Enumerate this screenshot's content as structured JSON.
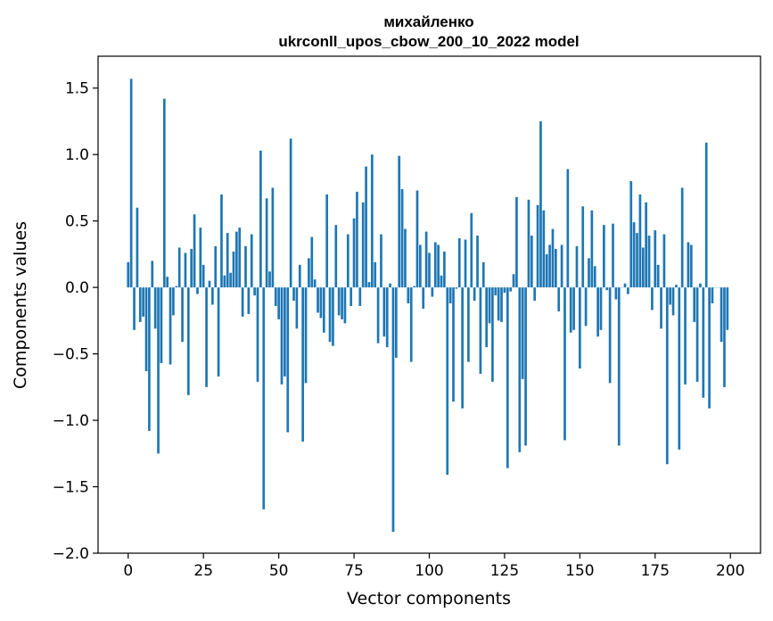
{
  "chart_data": {
    "type": "bar",
    "title": "михайленко",
    "subtitle": "ukrconll_upos_cbow_200_10_2022 model",
    "xlabel": "Vector components",
    "ylabel": "Components values",
    "xlim": [
      -10,
      210
    ],
    "ylim": [
      -2.0,
      1.74
    ],
    "xticks": [
      0,
      25,
      50,
      75,
      100,
      125,
      150,
      175,
      200
    ],
    "xtick_labels": [
      "0",
      "25",
      "50",
      "75",
      "100",
      "125",
      "150",
      "175",
      "200"
    ],
    "yticks": [
      -2.0,
      -1.5,
      -1.0,
      -0.5,
      0.0,
      0.5,
      1.0,
      1.5
    ],
    "ytick_labels": [
      "−2.0",
      "−1.5",
      "−1.0",
      "−0.5",
      "0.0",
      "0.5",
      "1.0",
      "1.5"
    ],
    "grid": false,
    "bar_color": "#1f77b4",
    "x": [
      0,
      1,
      2,
      3,
      4,
      5,
      6,
      7,
      8,
      9,
      10,
      11,
      12,
      13,
      14,
      15,
      16,
      17,
      18,
      19,
      20,
      21,
      22,
      23,
      24,
      25,
      26,
      27,
      28,
      29,
      30,
      31,
      32,
      33,
      34,
      35,
      36,
      37,
      38,
      39,
      40,
      41,
      42,
      43,
      44,
      45,
      46,
      47,
      48,
      49,
      50,
      51,
      52,
      53,
      54,
      55,
      56,
      57,
      58,
      59,
      60,
      61,
      62,
      63,
      64,
      65,
      66,
      67,
      68,
      69,
      70,
      71,
      72,
      73,
      74,
      75,
      76,
      77,
      78,
      79,
      80,
      81,
      82,
      83,
      84,
      85,
      86,
      87,
      88,
      89,
      90,
      91,
      92,
      93,
      94,
      95,
      96,
      97,
      98,
      99,
      100,
      101,
      102,
      103,
      104,
      105,
      106,
      107,
      108,
      109,
      110,
      111,
      112,
      113,
      114,
      115,
      116,
      117,
      118,
      119,
      120,
      121,
      122,
      123,
      124,
      125,
      126,
      127,
      128,
      129,
      130,
      131,
      132,
      133,
      134,
      135,
      136,
      137,
      138,
      139,
      140,
      141,
      142,
      143,
      144,
      145,
      146,
      147,
      148,
      149,
      150,
      151,
      152,
      153,
      154,
      155,
      156,
      157,
      158,
      159,
      160,
      161,
      162,
      163,
      164,
      165,
      166,
      167,
      168,
      169,
      170,
      171,
      172,
      173,
      174,
      175,
      176,
      177,
      178,
      179,
      180,
      181,
      182,
      183,
      184,
      185,
      186,
      187,
      188,
      189,
      190,
      191,
      192,
      193,
      194,
      195,
      196,
      197,
      198,
      199
    ],
    "values": [
      0.19,
      1.57,
      -0.32,
      0.6,
      -0.26,
      -0.22,
      -0.63,
      -1.08,
      0.2,
      -0.31,
      -1.25,
      -0.57,
      1.42,
      0.08,
      -0.58,
      -0.21,
      0.01,
      0.3,
      -0.41,
      0.26,
      -0.81,
      0.29,
      0.55,
      -0.05,
      0.45,
      0.17,
      -0.75,
      0.05,
      -0.13,
      0.31,
      -0.67,
      0.7,
      0.09,
      0.41,
      0.11,
      0.27,
      0.42,
      0.45,
      -0.22,
      0.31,
      -0.2,
      0.4,
      -0.06,
      -0.71,
      1.03,
      -1.67,
      0.67,
      0.12,
      0.75,
      -0.14,
      -0.24,
      -0.73,
      -0.67,
      -1.09,
      1.12,
      -0.1,
      -0.31,
      0.17,
      -1.16,
      -0.72,
      0.22,
      0.38,
      0.06,
      -0.19,
      -0.23,
      -0.34,
      0.7,
      -0.41,
      -0.44,
      0.47,
      -0.21,
      -0.24,
      -0.27,
      0.4,
      -0.14,
      0.52,
      0.72,
      -0.14,
      0.64,
      0.91,
      0.04,
      1.0,
      0.19,
      -0.42,
      0.4,
      -0.37,
      -0.45,
      0.03,
      -1.84,
      -0.53,
      0.99,
      0.74,
      0.44,
      -0.12,
      -0.56,
      0.01,
      0.73,
      0.32,
      -0.16,
      0.42,
      0.26,
      -0.07,
      0.34,
      0.32,
      0.09,
      0.27,
      -1.41,
      -0.12,
      -0.86,
      -0.01,
      0.37,
      -0.91,
      0.36,
      -0.56,
      0.56,
      -0.1,
      0.39,
      -0.65,
      0.19,
      -0.45,
      -0.27,
      -0.71,
      -0.06,
      -0.25,
      -0.26,
      -0.04,
      -1.36,
      -0.03,
      0.1,
      0.68,
      -1.24,
      -0.69,
      -1.19,
      0.66,
      0.39,
      -0.1,
      0.62,
      1.25,
      0.58,
      0.25,
      0.32,
      0.44,
      0.29,
      -0.18,
      0.32,
      -1.15,
      0.89,
      -0.34,
      -0.32,
      0.31,
      -0.61,
      0.61,
      -0.29,
      0.22,
      0.58,
      0.16,
      -0.37,
      -0.32,
      0.47,
      -0.02,
      -0.72,
      0.48,
      -0.09,
      -1.19,
      0.0,
      0.03,
      -0.05,
      0.8,
      0.49,
      0.41,
      0.7,
      0.3,
      0.64,
      0.39,
      -0.17,
      0.43,
      0.17,
      -0.31,
      0.4,
      -1.33,
      -0.13,
      -0.21,
      0.02,
      -1.22,
      0.75,
      -0.73,
      0.34,
      0.32,
      -0.26,
      -0.71,
      0.03,
      -0.83,
      1.09,
      -0.91,
      -0.12,
      0.0,
      0.0,
      -0.41,
      -0.75,
      -0.32
    ]
  }
}
